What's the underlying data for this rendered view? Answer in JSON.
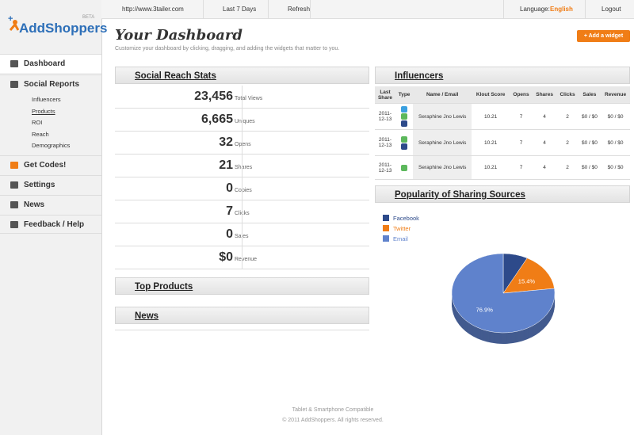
{
  "logo": {
    "name": "AddShoppers",
    "badge": "BETA"
  },
  "sidebar": {
    "items": [
      {
        "label": "Dashboard"
      },
      {
        "label": "Social Reports",
        "children": [
          "Influencers",
          "Products",
          "ROI",
          "Reach",
          "Demographics"
        ]
      },
      {
        "label": "Get Codes!"
      },
      {
        "label": "Settings"
      },
      {
        "label": "News"
      },
      {
        "label": "Feedback / Help"
      }
    ]
  },
  "topbar": {
    "url": "http://www.3tailer.com",
    "range": "Last 7 Days",
    "refresh": "Refresh",
    "language_label": "Language:",
    "language": "English",
    "logout": "Logout"
  },
  "header": {
    "title": "Your Dashboard",
    "subtitle": "Customize your dashboard by clicking, dragging, and adding the widgets that matter to you.",
    "button": "+ Add a widget"
  },
  "social_reach_stats": {
    "title": "Social Reach Stats",
    "rows": [
      {
        "value": "23,456",
        "label": "Total Views"
      },
      {
        "value": "6,665",
        "label": "Uniques"
      },
      {
        "value": "32",
        "label": "Opens"
      },
      {
        "value": "21",
        "label": "Shares"
      },
      {
        "value": "0",
        "label": "Copies"
      },
      {
        "value": "7",
        "label": "Clicks"
      },
      {
        "value": "0",
        "label": "Sales"
      },
      {
        "value": "$0",
        "label": "Revenue"
      }
    ]
  },
  "top_products": {
    "title": "Top Products"
  },
  "news": {
    "title": "News"
  },
  "influencers": {
    "title": "Influencers",
    "columns": [
      "Last Share",
      "Type",
      "Name / Email",
      "Klout Score",
      "Opens",
      "Shares",
      "Clicks",
      "Sales",
      "Revenue"
    ],
    "rows": [
      [
        "2011-12-13",
        "Seraphine Jno Lewis",
        "10.21",
        "7",
        "4",
        "2",
        "$0 / $0",
        "$0 / $0"
      ],
      [
        "2011-12-13",
        "Seraphine Jno Lewis",
        "10.21",
        "7",
        "4",
        "2",
        "$0 / $0",
        "$0 / $0"
      ],
      [
        "2011-12-13",
        "Seraphine Jno Lewis",
        "10.21",
        "7",
        "4",
        "2",
        "$0 / $0",
        "$0 / $0"
      ]
    ]
  },
  "chart_data": {
    "type": "pie",
    "title": "Popularity of Sharing Sources",
    "categories": [
      "Facebook",
      "Twitter",
      "Email"
    ],
    "values": [
      7.7,
      15.4,
      76.9
    ],
    "value_labels": [
      null,
      "15.4%",
      "76.9%"
    ],
    "colors": [
      "#2d4a8a",
      "#f07d16",
      "#5f82cc"
    ],
    "legend": "top-left"
  },
  "footer": {
    "line1": "Tablet & Smartphone Compatible",
    "line2": "© 2011 AddShoppers. All rights reserved."
  }
}
